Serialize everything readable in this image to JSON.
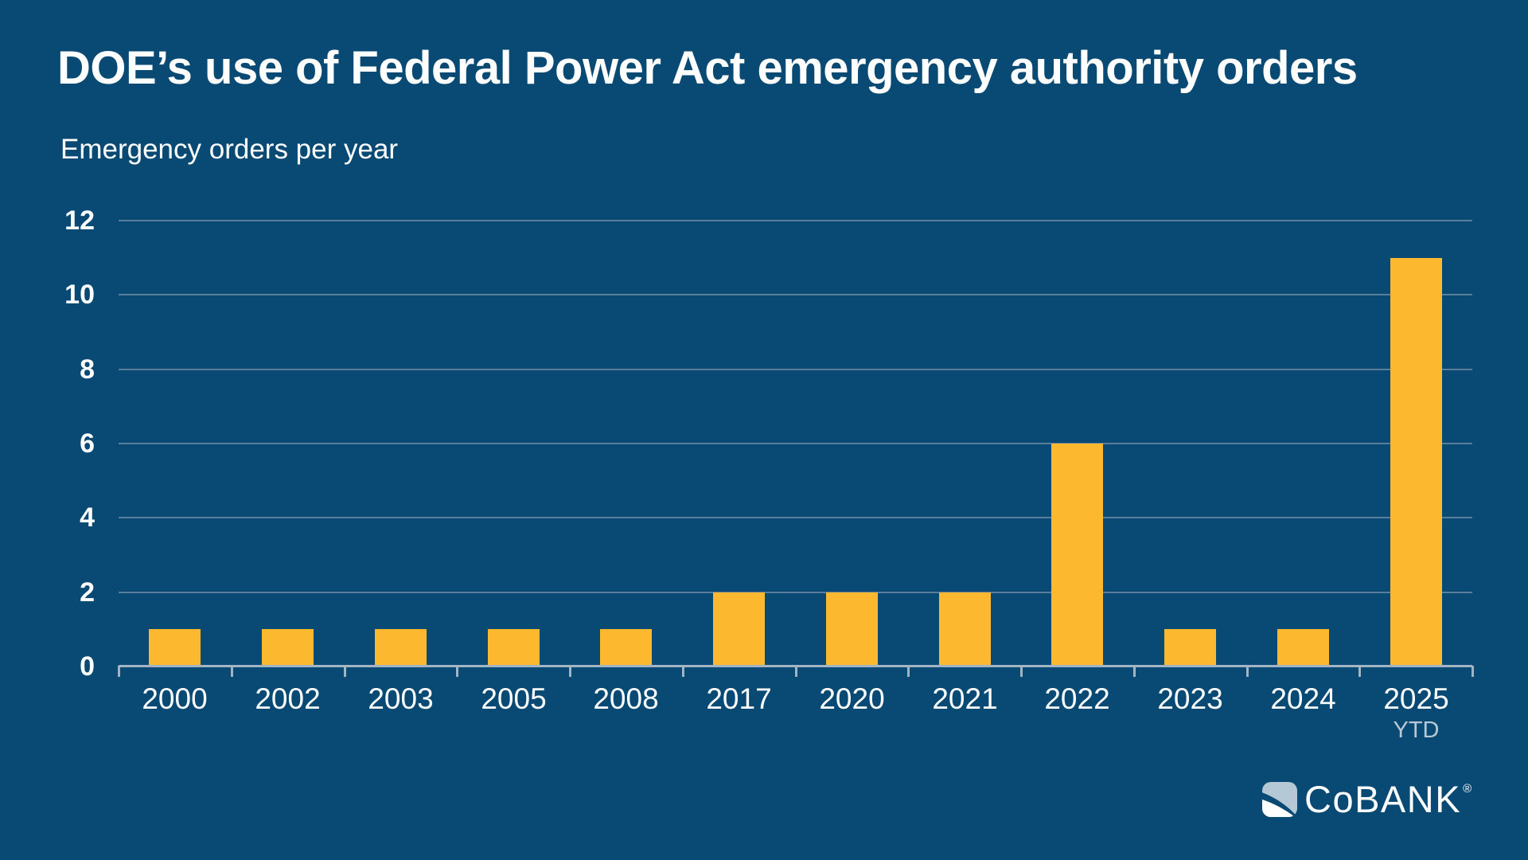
{
  "header": {
    "title": "DOE’s use of Federal Power Act emergency authority orders",
    "subtitle": "Emergency orders per year"
  },
  "chart_data": {
    "type": "bar",
    "title": "DOE’s use of Federal Power Act emergency authority orders",
    "ylabel": "Emergency orders per year",
    "xlabel": "",
    "categories": [
      "2000",
      "2002",
      "2003",
      "2005",
      "2008",
      "2017",
      "2020",
      "2021",
      "2022",
      "2023",
      "2024",
      "2025"
    ],
    "values": [
      1,
      1,
      1,
      1,
      1,
      2,
      2,
      2,
      6,
      1,
      1,
      11
    ],
    "last_category_note": "YTD",
    "yticks": [
      0,
      2,
      4,
      6,
      8,
      10,
      12
    ],
    "ylim": [
      0,
      12
    ],
    "grid": "horizontal gridlines at even values, no vertical gridlines",
    "legend": "none",
    "bar_color": "#FCB82F"
  },
  "branding": {
    "logo_text": "CoBANK",
    "registered_mark": "®",
    "logo_icon": "cobank-shield-icon"
  },
  "colors": {
    "background": "#094A75",
    "bar": "#FCB82F",
    "gridline": "#5B7D9C",
    "axis": "#A3B4C2",
    "text": "#FFFFFF",
    "note": "#B9C8D3",
    "logo_light_blue": "#B5C8D6"
  }
}
